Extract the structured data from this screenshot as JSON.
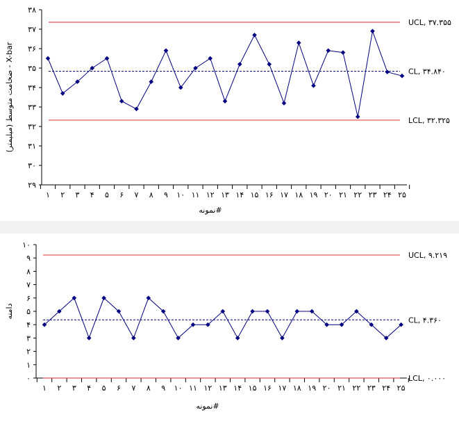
{
  "chart_data": [
    {
      "type": "line",
      "title": "",
      "xlabel": "نمونه#",
      "ylabel": "ضخامت متوسط (میلیمتر) - X-bar",
      "ylim": [
        29,
        38
      ],
      "y_ticks": [
        "۲۹",
        "۳۰",
        "۳۱",
        "۳۲",
        "۳۳",
        "۳۴",
        "۳۵",
        "۳۶",
        "۳۷",
        "۳۸"
      ],
      "categories": [
        "۱",
        "۲",
        "۳",
        "۴",
        "۵",
        "۶",
        "۷",
        "۸",
        "۹",
        "۱۰",
        "۱۱",
        "۱۲",
        "۱۳",
        "۱۴",
        "۱۵",
        "۱۶",
        "۱۷",
        "۱۸",
        "۱۹",
        "۲۰",
        "۲۱",
        "۲۲",
        "۲۳",
        "۲۴",
        "۲۵"
      ],
      "series": [
        {
          "values": [
            35.5,
            33.7,
            34.3,
            35.0,
            35.5,
            33.3,
            32.9,
            34.3,
            35.9,
            34.0,
            35.0,
            35.5,
            33.3,
            35.2,
            36.7,
            35.2,
            33.2,
            36.3,
            34.1,
            35.9,
            35.8,
            32.5,
            36.9,
            34.8,
            34.6
          ],
          "color": "#000080"
        }
      ],
      "control_lines": [
        {
          "label": "UCL, ۳۷.۳۵۵",
          "value": 37.355,
          "color": "#e03030"
        },
        {
          "label": "CL, ۳۴.۸۴۰",
          "value": 34.84,
          "color": "#000080"
        },
        {
          "label": "LCL, ۳۲.۳۲۵",
          "value": 32.325,
          "color": "#e03030"
        }
      ],
      "grid": false,
      "legend": "none"
    },
    {
      "type": "line",
      "title": "",
      "xlabel": "نمونه#",
      "ylabel": "دامنه",
      "ylim": [
        0,
        10
      ],
      "y_ticks": [
        "۰",
        "۱",
        "۲",
        "۳",
        "۴",
        "۵",
        "۶",
        "۷",
        "۸",
        "۹",
        "۱۰"
      ],
      "categories": [
        "۱",
        "۲",
        "۳",
        "۴",
        "۵",
        "۶",
        "۷",
        "۸",
        "۹",
        "۱۰",
        "۱۱",
        "۱۲",
        "۱۳",
        "۱۴",
        "۱۵",
        "۱۶",
        "۱۷",
        "۱۸",
        "۱۹",
        "۲۰",
        "۲۱",
        "۲۲",
        "۲۳",
        "۲۴",
        "۲۵"
      ],
      "series": [
        {
          "values": [
            4,
            5,
            6,
            3,
            6,
            5,
            3,
            6,
            5,
            3,
            4,
            4,
            5,
            3,
            5,
            5,
            3,
            5,
            5,
            4,
            4,
            5,
            4,
            3,
            4
          ],
          "color": "#000080"
        }
      ],
      "control_lines": [
        {
          "label": "UCL, ۹.۲۱۹",
          "value": 9.219,
          "color": "#e03030"
        },
        {
          "label": "CL, ۴.۳۶۰",
          "value": 4.36,
          "color": "#000080"
        },
        {
          "label": "LCL, ۰.۰۰۰",
          "value": 0.0,
          "color": "#e03030"
        }
      ],
      "grid": false,
      "legend": "none"
    }
  ]
}
